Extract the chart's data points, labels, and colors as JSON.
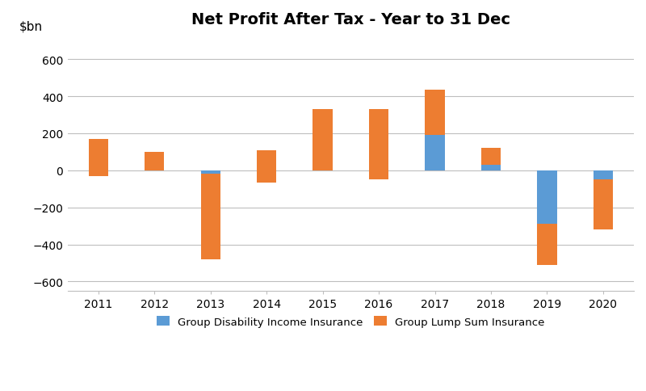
{
  "years": [
    2011,
    2012,
    2013,
    2014,
    2015,
    2016,
    2017,
    2018,
    2019,
    2020
  ],
  "disability_income": [
    -30,
    0,
    -20,
    -65,
    0,
    -50,
    190,
    30,
    -290,
    -50
  ],
  "lump_sum": [
    200,
    100,
    -460,
    175,
    330,
    380,
    245,
    90,
    -220,
    -270
  ],
  "disability_color": "#5B9BD5",
  "lump_sum_color": "#ED7D31",
  "title": "Net Profit After Tax - Year to 31 Dec",
  "ylabel": "$bn",
  "ylim": [
    -650,
    720
  ],
  "yticks": [
    -600,
    -400,
    -200,
    0,
    200,
    400,
    600
  ],
  "legend_disability": "Group Disability Income Insurance",
  "legend_lump_sum": "Group Lump Sum Insurance",
  "background_color": "#FFFFFF",
  "grid_color": "#BEBEBE",
  "bar_width": 0.35,
  "title_fontsize": 14,
  "tick_fontsize": 10
}
